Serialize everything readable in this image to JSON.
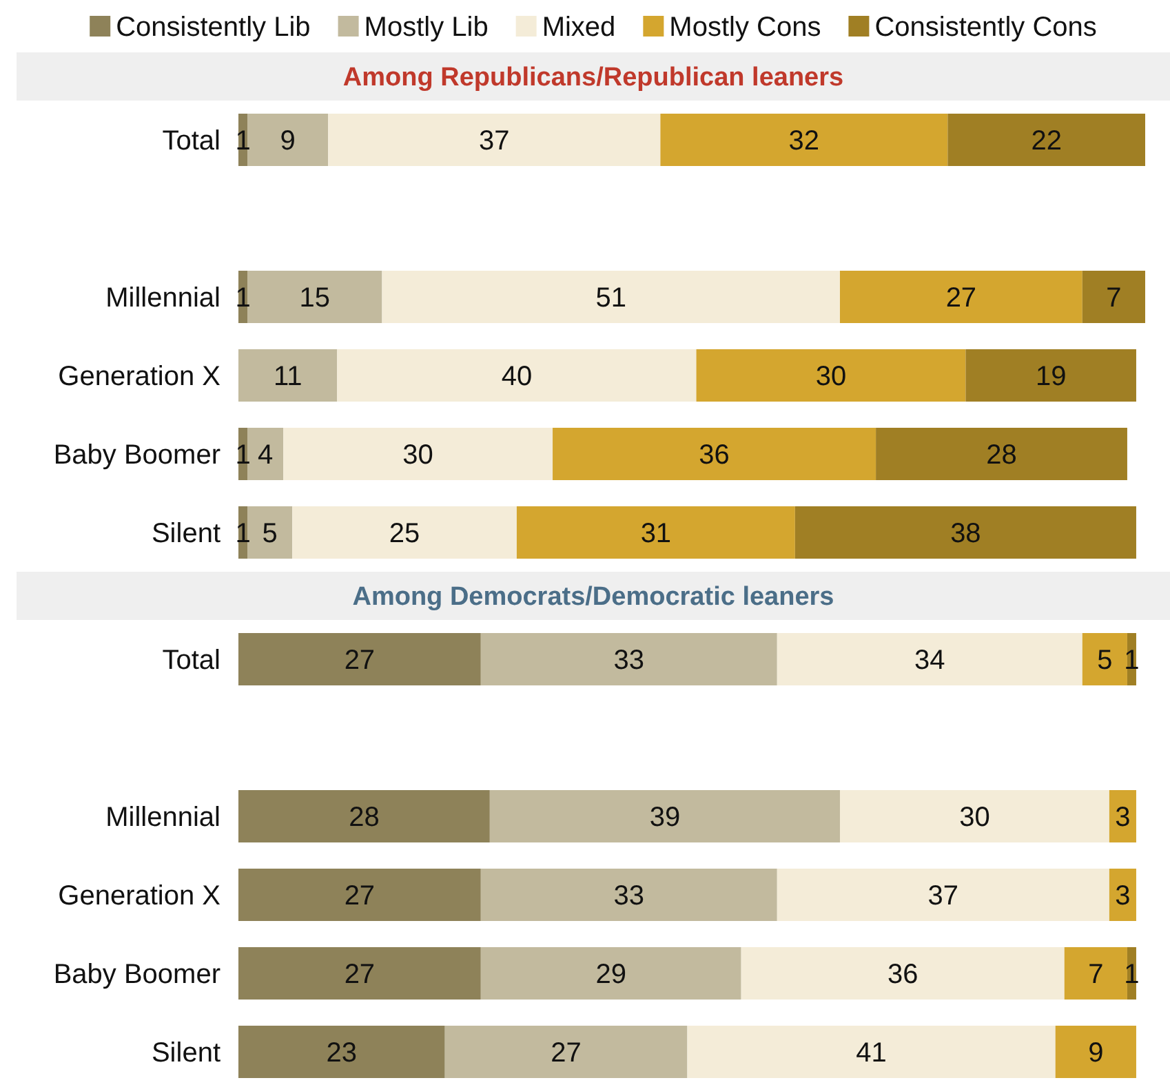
{
  "chart_data": [
    {
      "type": "bar",
      "orientation": "horizontal",
      "stacked": true,
      "title": "Among Republicans/Republican leaners",
      "legend": "top",
      "data_labels": true,
      "categories": [
        "Total",
        null,
        "Millennial",
        "Generation X",
        "Baby Boomer",
        "Silent"
      ],
      "series": [
        {
          "name": "Consistently Lib",
          "color": "#8e8259",
          "values": [
            1,
            null,
            1,
            null,
            1,
            1
          ]
        },
        {
          "name": "Mostly Lib",
          "color": "#c2ba9e",
          "values": [
            9,
            null,
            15,
            11,
            4,
            5
          ]
        },
        {
          "name": "Mixed",
          "color": "#f4ecd8",
          "values": [
            37,
            null,
            51,
            40,
            30,
            25
          ]
        },
        {
          "name": "Mostly Cons",
          "color": "#d4a62f",
          "values": [
            32,
            null,
            27,
            30,
            36,
            31
          ]
        },
        {
          "name": "Consistently Cons",
          "color": "#a07f24",
          "values": [
            22,
            null,
            7,
            19,
            28,
            38
          ]
        }
      ]
    },
    {
      "type": "bar",
      "orientation": "horizontal",
      "stacked": true,
      "title": "Among Democrats/Democratic leaners",
      "data_labels": true,
      "categories": [
        "Total",
        null,
        "Millennial",
        "Generation X",
        "Baby Boomer",
        "Silent"
      ],
      "series": [
        {
          "color": "#8e8259",
          "values": [
            27,
            null,
            28,
            27,
            27,
            23
          ]
        },
        {
          "color": "#c2ba9e",
          "values": [
            33,
            null,
            39,
            33,
            29,
            27
          ]
        },
        {
          "color": "#f4ecd8",
          "values": [
            34,
            null,
            30,
            37,
            36,
            41
          ]
        },
        {
          "color": "#d4a62f",
          "values": [
            5,
            null,
            3,
            3,
            7,
            9
          ]
        },
        {
          "color": "#a07f24",
          "values": [
            1,
            null,
            null,
            null,
            1,
            null
          ]
        }
      ]
    }
  ]
}
